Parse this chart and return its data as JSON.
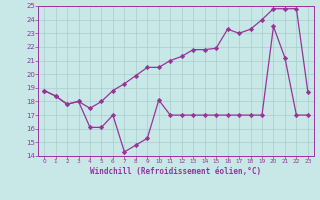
{
  "line1_x": [
    0,
    1,
    2,
    3,
    4,
    5,
    6,
    7,
    8,
    9,
    10,
    11,
    12,
    13,
    14,
    15,
    16,
    17,
    18,
    19,
    20,
    21,
    22,
    23
  ],
  "line1_y": [
    18.8,
    18.4,
    17.8,
    18.0,
    16.1,
    16.1,
    17.0,
    14.3,
    14.8,
    15.3,
    18.1,
    17.0,
    17.0,
    17.0,
    17.0,
    17.0,
    17.0,
    17.0,
    17.0,
    17.0,
    23.5,
    21.2,
    17.0,
    17.0
  ],
  "line2_x": [
    0,
    1,
    2,
    3,
    4,
    5,
    6,
    7,
    8,
    9,
    10,
    11,
    12,
    13,
    14,
    15,
    16,
    17,
    18,
    19,
    20,
    21,
    22,
    23
  ],
  "line2_y": [
    18.8,
    18.4,
    17.8,
    18.0,
    17.5,
    18.0,
    18.8,
    19.3,
    19.9,
    20.5,
    20.5,
    21.0,
    21.3,
    21.8,
    21.8,
    21.9,
    23.3,
    23.0,
    23.3,
    24.0,
    24.8,
    24.8,
    24.8,
    18.7
  ],
  "color": "#993399",
  "bg_color": "#c8e8e8",
  "grid_color": "#aacccc",
  "xlabel": "Windchill (Refroidissement éolien,°C)",
  "ylim": [
    14,
    25
  ],
  "xlim": [
    -0.5,
    23.5
  ],
  "yticks": [
    14,
    15,
    16,
    17,
    18,
    19,
    20,
    21,
    22,
    23,
    24,
    25
  ],
  "xticks": [
    0,
    1,
    2,
    3,
    4,
    5,
    6,
    7,
    8,
    9,
    10,
    11,
    12,
    13,
    14,
    15,
    16,
    17,
    18,
    19,
    20,
    21,
    22,
    23
  ]
}
